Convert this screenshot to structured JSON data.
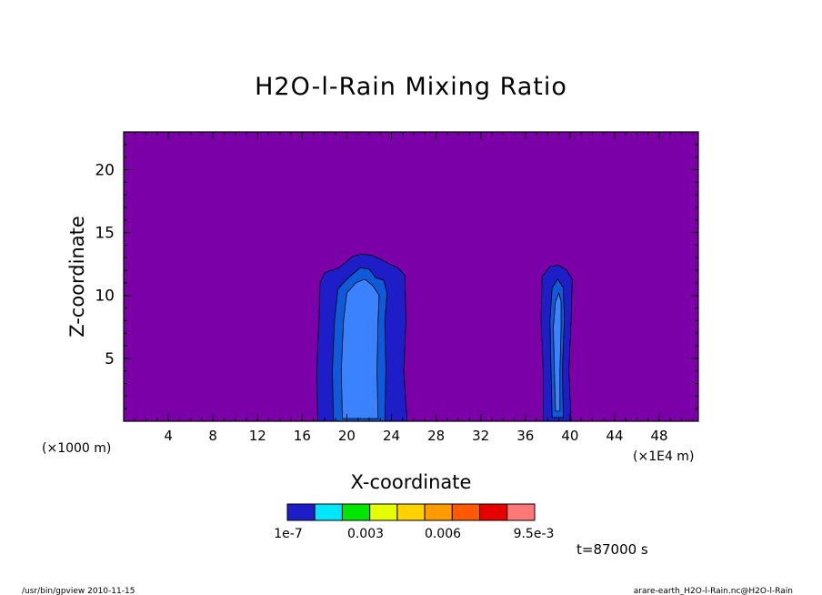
{
  "chart_data": {
    "type": "contour",
    "title": "H2O-l-Rain Mixing Ratio",
    "xlabel": "X-coordinate",
    "ylabel": "Z-coordinate",
    "x_unit": "(×1E4 m)",
    "y_unit": "(×1000 m)",
    "xlim": [
      0,
      51.5
    ],
    "ylim": [
      0,
      23
    ],
    "x_ticks": [
      4,
      8,
      12,
      16,
      20,
      24,
      28,
      32,
      36,
      40,
      44,
      48
    ],
    "y_ticks": [
      5,
      10,
      15,
      20
    ],
    "background_color": "#7b00a8",
    "regions": [
      {
        "level": "1e-7",
        "color": "#1e1ec8",
        "polygon": [
          [
            17.4,
            0
          ],
          [
            17.3,
            4
          ],
          [
            17.5,
            8
          ],
          [
            17.6,
            11
          ],
          [
            18.0,
            11.8
          ],
          [
            18.6,
            12.0
          ],
          [
            19.3,
            12.2
          ],
          [
            20.0,
            12.7
          ],
          [
            20.5,
            13.1
          ],
          [
            21.3,
            13.3
          ],
          [
            22.2,
            13.2
          ],
          [
            23.0,
            12.9
          ],
          [
            23.8,
            12.5
          ],
          [
            24.6,
            12.2
          ],
          [
            25.2,
            11.6
          ],
          [
            25.3,
            8
          ],
          [
            25.1,
            4
          ],
          [
            25.4,
            0
          ]
        ]
      },
      {
        "level": "1e-7",
        "color": "#1e1ec8",
        "polygon": [
          [
            37.6,
            0
          ],
          [
            37.6,
            4
          ],
          [
            37.4,
            8
          ],
          [
            37.5,
            11.5
          ],
          [
            38.2,
            12.3
          ],
          [
            39.0,
            12.4
          ],
          [
            39.7,
            12.0
          ],
          [
            40.2,
            11.3
          ],
          [
            40.1,
            8
          ],
          [
            39.9,
            4
          ],
          [
            40.1,
            0
          ]
        ]
      },
      {
        "level": "0.003",
        "color": "#0f5ad8",
        "polygon": [
          [
            18.8,
            0
          ],
          [
            18.7,
            4
          ],
          [
            18.9,
            8
          ],
          [
            19.2,
            10.5
          ],
          [
            19.8,
            11.1
          ],
          [
            20.4,
            11.6
          ],
          [
            21.2,
            12.2
          ],
          [
            22.0,
            12.1
          ],
          [
            22.6,
            11.4
          ],
          [
            23.3,
            11.2
          ],
          [
            23.6,
            10.2
          ],
          [
            23.4,
            8
          ],
          [
            23.5,
            4
          ],
          [
            23.4,
            0
          ]
        ]
      },
      {
        "level": "0.003",
        "color": "#0f5ad8",
        "polygon": [
          [
            38.4,
            0.3
          ],
          [
            38.3,
            4
          ],
          [
            38.2,
            8
          ],
          [
            38.4,
            10.6
          ],
          [
            38.9,
            11.3
          ],
          [
            39.4,
            10.6
          ],
          [
            39.5,
            8
          ],
          [
            39.3,
            4
          ],
          [
            39.4,
            0.3
          ]
        ]
      },
      {
        "level": "0.006",
        "color": "#3a82ff",
        "polygon": [
          [
            19.6,
            0.2
          ],
          [
            19.5,
            4
          ],
          [
            19.7,
            8
          ],
          [
            20.0,
            10.2
          ],
          [
            20.8,
            11.0
          ],
          [
            21.6,
            11.3
          ],
          [
            22.3,
            10.8
          ],
          [
            22.9,
            10.0
          ],
          [
            22.8,
            8
          ],
          [
            22.7,
            4
          ],
          [
            22.8,
            0.2
          ]
        ]
      },
      {
        "level": "0.006",
        "color": "#3a82ff",
        "polygon": [
          [
            38.7,
            0.8
          ],
          [
            38.6,
            4
          ],
          [
            38.5,
            7.5
          ],
          [
            38.7,
            9.5
          ],
          [
            39.0,
            10.2
          ],
          [
            39.2,
            9.5
          ],
          [
            39.2,
            7.5
          ],
          [
            39.1,
            4
          ],
          [
            39.1,
            0.8
          ]
        ]
      }
    ],
    "colorbar": {
      "colors": [
        "#1e1ec8",
        "#00e6ff",
        "#00e600",
        "#e6ff00",
        "#ffd200",
        "#ff9b00",
        "#ff5a00",
        "#e60000",
        "#ff7878"
      ],
      "labels": [
        "1e-7",
        "0.003",
        "0.006",
        "9.5e-3"
      ]
    }
  },
  "annotations": {
    "time": "t=87000 s",
    "footer_left": "/usr/bin/gpview  2010-11-15",
    "footer_right": "arare-earth_H2O-l-Rain.nc@H2O-l-Rain"
  }
}
